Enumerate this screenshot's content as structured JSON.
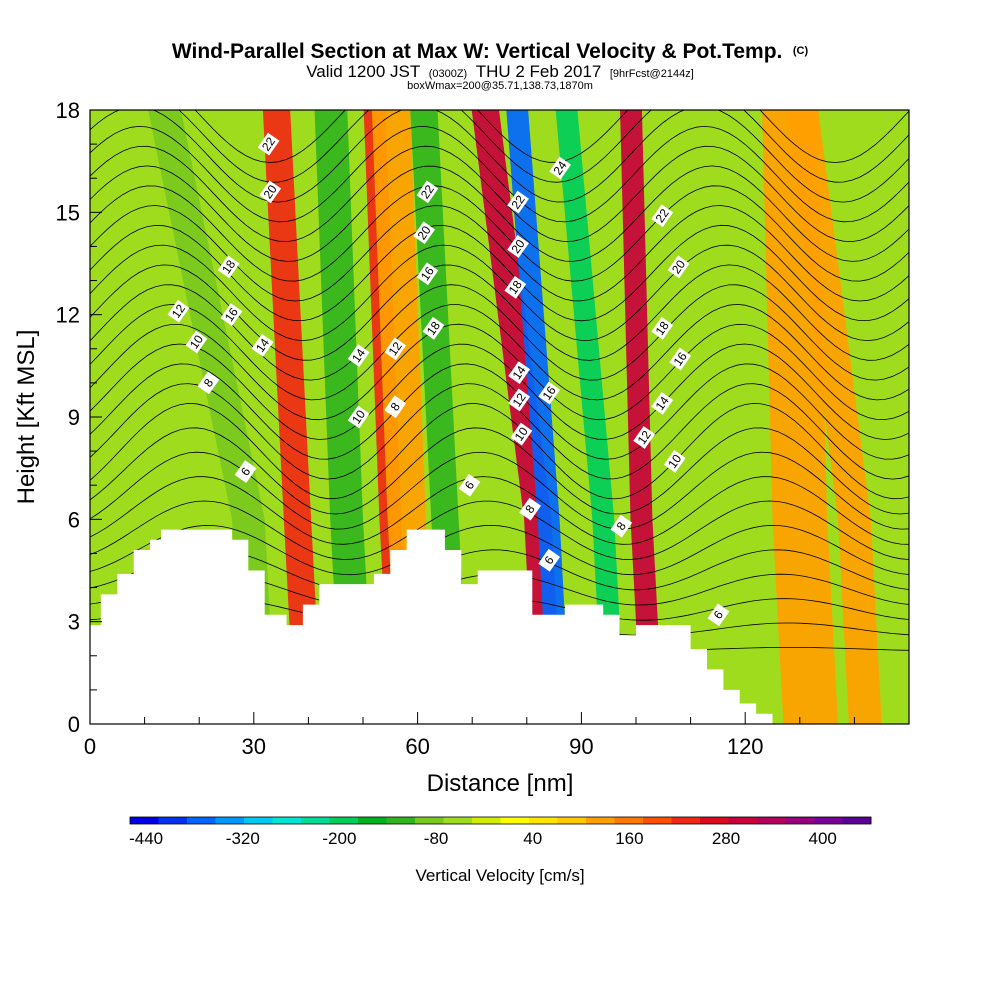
{
  "chart_data": {
    "type": "heatmap",
    "title": {
      "main": "Wind-Parallel Section at Max W: Vertical Velocity & Pot.Temp.",
      "copyright": "(C)",
      "valid_prefix": "Valid 1200 JST",
      "valid_utc": "(0300Z)",
      "valid_date": "THU 2 Feb 2017",
      "forecast": "[9hrFcst@2144z]",
      "box": "boxWmax=200@35.71,138.73,1870m"
    },
    "xlabel": "Distance [nm]",
    "ylabel": "Height [Kft MSL]",
    "xlim": [
      0,
      150
    ],
    "ylim": [
      0,
      18
    ],
    "x_ticks": [
      0,
      30,
      60,
      90,
      120
    ],
    "y_ticks": [
      0,
      3,
      6,
      9,
      12,
      15,
      18
    ],
    "colorbar": {
      "title": "Vertical Velocity [cm/s]",
      "min": -460,
      "max": 460,
      "step": 40,
      "tick_labels": [
        -440,
        -320,
        -200,
        -80,
        40,
        160,
        280,
        400
      ],
      "colors": [
        "#0000e6",
        "#0033f0",
        "#0066ff",
        "#0099ff",
        "#00c8f0",
        "#00e6d2",
        "#00dc96",
        "#00cd5a",
        "#00b41e",
        "#32b41e",
        "#78c81e",
        "#a0dc1e",
        "#d2ee00",
        "#ffff00",
        "#ffe600",
        "#ffc800",
        "#ffa000",
        "#ff7800",
        "#ff5000",
        "#f02814",
        "#dc0a1e",
        "#c8003c",
        "#b4005a",
        "#96007d",
        "#780096",
        "#5a0096"
      ]
    },
    "terrain_kft": [
      [
        0,
        2.9
      ],
      [
        2,
        2.9
      ],
      [
        2,
        3.8
      ],
      [
        5,
        3.8
      ],
      [
        5,
        4.4
      ],
      [
        8,
        4.4
      ],
      [
        8,
        5.1
      ],
      [
        11,
        5.1
      ],
      [
        11,
        5.4
      ],
      [
        13,
        5.4
      ],
      [
        13,
        5.7
      ],
      [
        26,
        5.7
      ],
      [
        26,
        5.4
      ],
      [
        29,
        5.4
      ],
      [
        29,
        4.5
      ],
      [
        32,
        4.5
      ],
      [
        32,
        3.2
      ],
      [
        36,
        3.2
      ],
      [
        36,
        2.9
      ],
      [
        39,
        2.9
      ],
      [
        39,
        3.5
      ],
      [
        42,
        3.5
      ],
      [
        42,
        4.1
      ],
      [
        52,
        4.1
      ],
      [
        52,
        4.4
      ],
      [
        55,
        4.4
      ],
      [
        55,
        5.1
      ],
      [
        58,
        5.1
      ],
      [
        58,
        5.7
      ],
      [
        65,
        5.7
      ],
      [
        65,
        5.1
      ],
      [
        68,
        5.1
      ],
      [
        68,
        4.1
      ],
      [
        71,
        4.1
      ],
      [
        71,
        4.5
      ],
      [
        81,
        4.5
      ],
      [
        81,
        3.2
      ],
      [
        87,
        3.2
      ],
      [
        87,
        3.5
      ],
      [
        94,
        3.5
      ],
      [
        94,
        3.2
      ],
      [
        97,
        3.2
      ],
      [
        97,
        2.6
      ],
      [
        100,
        2.6
      ],
      [
        100,
        2.9
      ],
      [
        110,
        2.9
      ],
      [
        110,
        2.2
      ],
      [
        113,
        2.2
      ],
      [
        113,
        1.6
      ],
      [
        116,
        1.6
      ],
      [
        116,
        1.0
      ],
      [
        119,
        1.0
      ],
      [
        119,
        0.6
      ],
      [
        122,
        0.6
      ],
      [
        122,
        0.3
      ],
      [
        125,
        0.3
      ],
      [
        125,
        0.0
      ],
      [
        150,
        0.0
      ]
    ],
    "wave_bands": [
      {
        "w": -100,
        "x18": 13,
        "x6": 29,
        "width": 6
      },
      {
        "w": 220,
        "x18": 34,
        "x6": 38,
        "width": 5
      },
      {
        "w": -140,
        "x18": 44,
        "x6": 47,
        "width": 6
      },
      {
        "w": 220,
        "x18": 52,
        "x6": 55,
        "width": 4
      },
      {
        "w": -140,
        "x18": 61,
        "x6": 65,
        "width": 5
      },
      {
        "w": 300,
        "x18": 72,
        "x6": 82,
        "width": 5
      },
      {
        "w": -380,
        "x18": 78,
        "x6": 84,
        "width": 4
      },
      {
        "w": -180,
        "x18": 87,
        "x6": 94,
        "width": 4
      },
      {
        "w": 300,
        "x18": 99,
        "x6": 101,
        "width": 4
      },
      {
        "w": 120,
        "x18": 55,
        "x6": 58,
        "width": 7
      },
      {
        "w": 120,
        "x18": 128,
        "x6": 130,
        "width": 10
      },
      {
        "w": 120,
        "x18": 130,
        "x6": 140,
        "width": 6
      }
    ],
    "background_w": -60,
    "isentrope_labels": [
      {
        "text": "22",
        "x": 32.7,
        "y": 17.0
      },
      {
        "text": "20",
        "x": 33.0,
        "y": 15.6
      },
      {
        "text": "18",
        "x": 25.4,
        "y": 13.4
      },
      {
        "text": "16",
        "x": 25.9,
        "y": 12.0
      },
      {
        "text": "12",
        "x": 16.2,
        "y": 12.1
      },
      {
        "text": "10",
        "x": 19.5,
        "y": 11.2
      },
      {
        "text": "8",
        "x": 21.7,
        "y": 10.0
      },
      {
        "text": "14",
        "x": 31.6,
        "y": 11.1
      },
      {
        "text": "6",
        "x": 28.5,
        "y": 7.4
      },
      {
        "text": "22",
        "x": 61.8,
        "y": 15.6
      },
      {
        "text": "20",
        "x": 61.2,
        "y": 14.4
      },
      {
        "text": "16",
        "x": 61.8,
        "y": 13.2
      },
      {
        "text": "18",
        "x": 62.9,
        "y": 11.6
      },
      {
        "text": "14",
        "x": 49.2,
        "y": 10.8
      },
      {
        "text": "12",
        "x": 55.9,
        "y": 11.0
      },
      {
        "text": "10",
        "x": 49.2,
        "y": 9.0
      },
      {
        "text": "8",
        "x": 55.9,
        "y": 9.3
      },
      {
        "text": "6",
        "x": 69.5,
        "y": 7.0
      },
      {
        "text": "22",
        "x": 78.4,
        "y": 15.3
      },
      {
        "text": "20",
        "x": 78.4,
        "y": 14.0
      },
      {
        "text": "18",
        "x": 77.9,
        "y": 12.8
      },
      {
        "text": "14",
        "x": 78.6,
        "y": 10.3
      },
      {
        "text": "12",
        "x": 78.6,
        "y": 9.5
      },
      {
        "text": "10",
        "x": 79.0,
        "y": 8.5
      },
      {
        "text": "8",
        "x": 80.6,
        "y": 6.3
      },
      {
        "text": "6",
        "x": 84.1,
        "y": 4.8
      },
      {
        "text": "16",
        "x": 84.1,
        "y": 9.7
      },
      {
        "text": "24",
        "x": 86.1,
        "y": 16.3
      },
      {
        "text": "22",
        "x": 104.8,
        "y": 14.9
      },
      {
        "text": "20",
        "x": 107.8,
        "y": 13.4
      },
      {
        "text": "18",
        "x": 104.8,
        "y": 11.6
      },
      {
        "text": "16",
        "x": 108.1,
        "y": 10.7
      },
      {
        "text": "14",
        "x": 104.8,
        "y": 9.4
      },
      {
        "text": "12",
        "x": 101.5,
        "y": 8.4
      },
      {
        "text": "10",
        "x": 107.1,
        "y": 7.7
      },
      {
        "text": "8",
        "x": 97.3,
        "y": 5.8
      },
      {
        "text": "6",
        "x": 115.1,
        "y": 3.2
      }
    ]
  }
}
